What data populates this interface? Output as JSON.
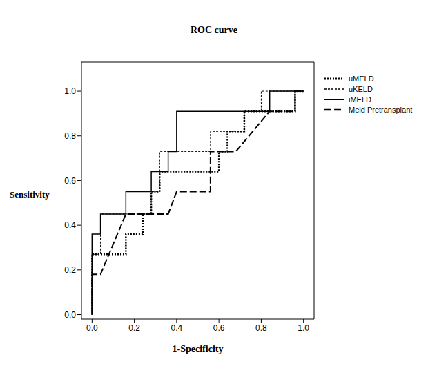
{
  "chart_data": {
    "type": "line",
    "title": "ROC curve",
    "x_label": "1-Specificity",
    "y_label": "Sensitivity",
    "xlim": [
      -0.05,
      1.05
    ],
    "ylim": [
      -0.02,
      1.13
    ],
    "xticks": [
      {
        "value": 0,
        "label": "0.0"
      },
      0.2,
      0.4,
      0.6,
      0.8,
      {
        "value": 1,
        "label": "1.0"
      }
    ],
    "yticks": [
      {
        "value": 0,
        "label": "0.0"
      },
      0.2,
      0.4,
      0.6,
      0.8,
      {
        "value": 1,
        "label": "1.0"
      }
    ],
    "grid": false,
    "legend": "right",
    "series": [
      {
        "name": "uMELD",
        "color": "#000000",
        "line_style": "dotted",
        "x": [
          0,
          0,
          0.16,
          0.16,
          0.24,
          0.24,
          0.28,
          0.28,
          0.32,
          0.32,
          0.6,
          0.6,
          0.64,
          0.64,
          0.72,
          0.72,
          0.96,
          0.96,
          1
        ],
        "values": [
          0,
          0.27,
          0.27,
          0.36,
          0.36,
          0.45,
          0.45,
          0.55,
          0.55,
          0.64,
          0.64,
          0.73,
          0.73,
          0.82,
          0.82,
          0.91,
          0.91,
          1,
          1
        ]
      },
      {
        "name": "uKELD",
        "color": "#000000",
        "line_style": "dashed",
        "x": [
          0,
          0,
          0.04,
          0.04,
          0.28,
          0.28,
          0.32,
          0.32,
          0.56,
          0.56,
          0.72,
          0.72,
          0.8,
          0.8,
          1
        ],
        "values": [
          0,
          0.27,
          0.27,
          0.45,
          0.45,
          0.55,
          0.55,
          0.73,
          0.73,
          0.82,
          0.82,
          0.91,
          0.91,
          1,
          1
        ]
      },
      {
        "name": "iMELD",
        "color": "#000000",
        "line_style": "solid",
        "x": [
          0,
          0,
          0.04,
          0.04,
          0.16,
          0.16,
          0.28,
          0.28,
          0.36,
          0.36,
          0.4,
          0.4,
          0.84,
          0.84,
          1
        ],
        "values": [
          0,
          0.36,
          0.36,
          0.45,
          0.45,
          0.55,
          0.55,
          0.64,
          0.64,
          0.73,
          0.73,
          0.91,
          0.91,
          1,
          1
        ]
      },
      {
        "name": "Meld Pretransplant",
        "color": "#000000",
        "line_style": "longdash",
        "x": [
          0,
          0,
          0.04,
          0.16,
          0.36,
          0.4,
          0.56,
          0.56,
          0.68,
          0.84,
          0.96,
          0.96,
          1
        ],
        "values": [
          0,
          0.18,
          0.18,
          0.45,
          0.45,
          0.55,
          0.55,
          0.73,
          0.73,
          0.91,
          0.91,
          1,
          1
        ]
      }
    ]
  }
}
